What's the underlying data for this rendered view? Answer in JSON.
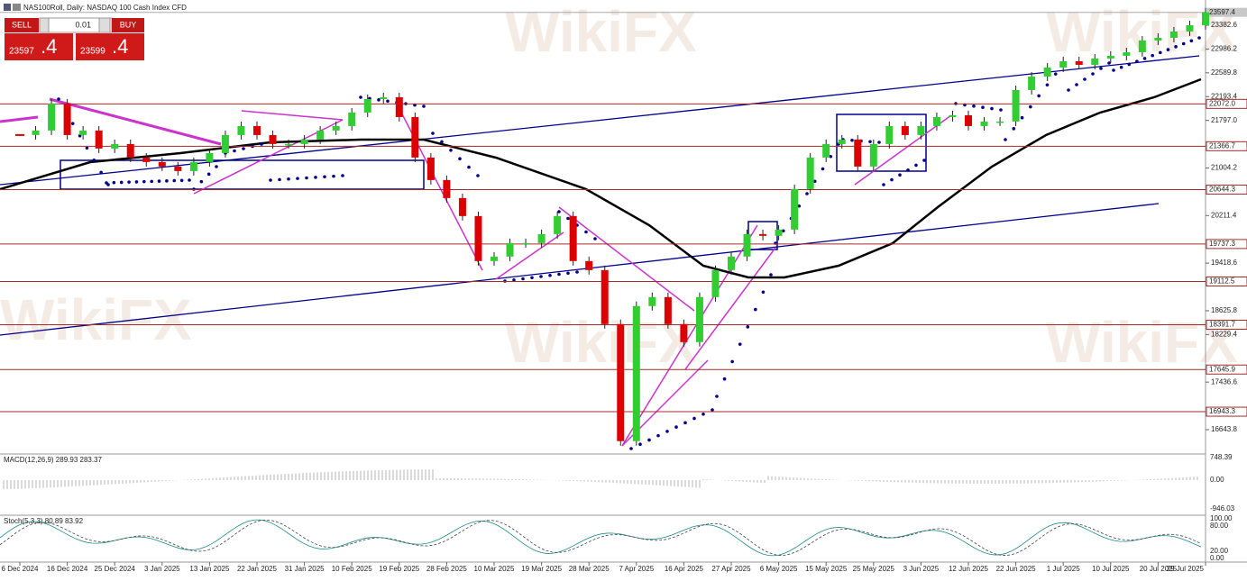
{
  "toolbar": {
    "symbol": "NAS100Roll, Daily: NASDAQ 100 Cash Index CFD",
    "sell": "SELL",
    "lot": "0.01",
    "buy": "BUY",
    "sell_price_main": "23597",
    "sell_price_frac": ".4",
    "buy_price_main": "23599",
    "buy_price_frac": ".4"
  },
  "watermark": "WikiFX",
  "chart_data": {
    "type": "candlestick",
    "categories": [
      "6 Dec 2024",
      null,
      null,
      "16 Dec 2024",
      null,
      null,
      "25 Dec 2024",
      null,
      null,
      "3 Jan 2025",
      null,
      null,
      "13 Jan 2025",
      null,
      null,
      "22 Jan 2025",
      null,
      null,
      "31 Jan 2025",
      null,
      null,
      "10 Feb 2025",
      null,
      null,
      "19 Feb 2025",
      null,
      null,
      "28 Feb 2025",
      null,
      null,
      "10 Mar 2025",
      null,
      null,
      "19 Mar 2025",
      null,
      null,
      "28 Mar 2025",
      null,
      null,
      "7 Apr 2025",
      null,
      null,
      "16 Apr 2025",
      null,
      null,
      "27 Apr 2025",
      null,
      null,
      "6 May 2025",
      null,
      null,
      "15 May 2025",
      null,
      null,
      "25 May 2025",
      null,
      null,
      "3 Jun 2025",
      null,
      null,
      "12 Jun 2025",
      null,
      null,
      "22 Jun 2025",
      null,
      null,
      "1 Jul 2025",
      null,
      null,
      "10 Jul 2025",
      null,
      null,
      "20 Jul 2025",
      null,
      null,
      "29 Jul 2025"
    ],
    "values": [
      21553,
      21628,
      22078,
      21553,
      21628,
      21328,
      21403,
      21178,
      21103,
      21028,
      20953,
      21103,
      21253,
      21553,
      21703,
      21553,
      21403,
      21403,
      21478,
      21628,
      21703,
      21928,
      22153,
      22183,
      21853,
      21178,
      20803,
      20503,
      20203,
      19453,
      19528,
      19753,
      19753,
      19903,
      20203,
      19453,
      19303,
      18403,
      16453,
      18703,
      18853,
      18403,
      18103,
      18853,
      19303,
      19528,
      19903,
      19873,
      19978,
      20653,
      21178,
      21403,
      21478,
      21028,
      21403,
      21703,
      21553,
      21703,
      21853,
      21883,
      21703,
      21778,
      21778,
      22303,
      22528,
      22678,
      22783,
      22723,
      22828,
      22873,
      22933,
      23128,
      23173,
      23278,
      23383,
      23597.4
    ],
    "up_color": "#32cd32",
    "down_color": "#dc0000",
    "ylim": [
      16253.6,
      23682.8
    ],
    "yticks": [
      23382.6,
      22986.2,
      22589.8,
      22193.4,
      {
        "value": 21797.0,
        "label": "21797.0"
      },
      21004.2,
      20211.4,
      19418.6,
      18625.8,
      18229.4,
      17436.6,
      16643.8
    ],
    "current_price": 23597.4,
    "levels": [
      {
        "value": 22072.0,
        "label": "22072.0"
      },
      21366.7,
      20644.3,
      19737.3,
      19112.5,
      18391.7,
      17645.9,
      16943.3
    ],
    "level_color": "#a52a2a"
  },
  "macd_panel": {
    "label": "MACD(12,26,9) 289.93 283.37",
    "ticks": [
      "748.39",
      "0.00",
      "-946.03"
    ]
  },
  "stoch_panel": {
    "label": "Stoch(5,3,3) 80.89 83.92",
    "ticks": [
      "100.00",
      "80.00",
      "20.00",
      "0.00"
    ]
  }
}
